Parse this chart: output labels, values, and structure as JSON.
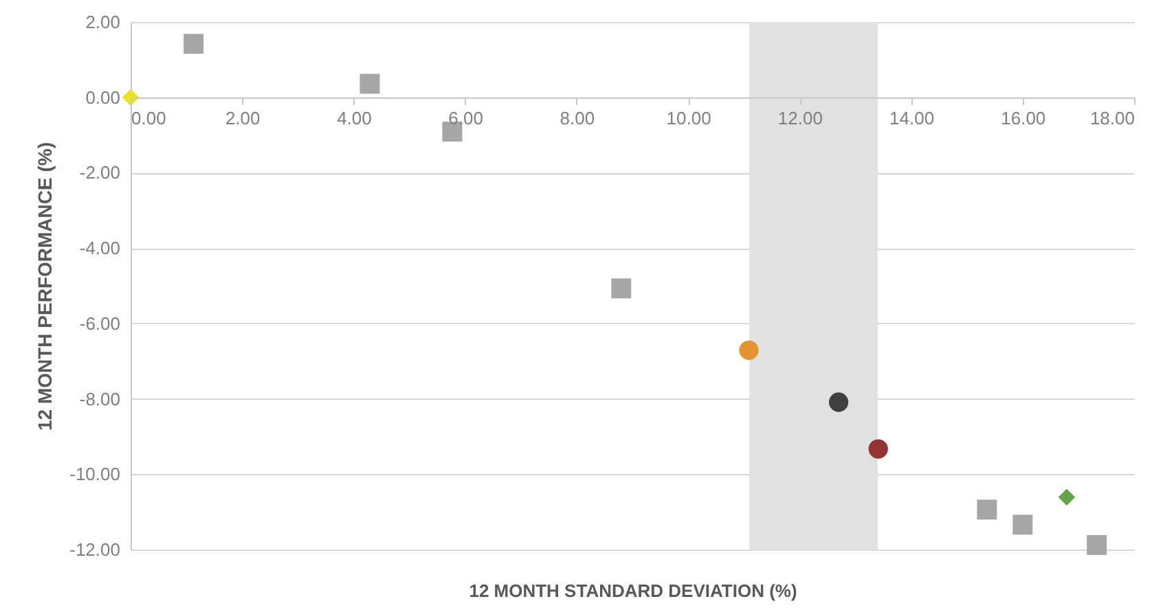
{
  "chart_data": {
    "type": "scatter",
    "xlabel": "12 MONTH STANDARD DEVIATION (%)",
    "ylabel": "12 MONTH PERFORMANCE (%)",
    "xlim": [
      0,
      18
    ],
    "ylim": [
      -12,
      2
    ],
    "xticks": [
      {
        "value": 0,
        "label": "0.00"
      },
      {
        "value": 2,
        "label": "2.00"
      },
      {
        "value": 4,
        "label": "4.00"
      },
      {
        "value": 6,
        "label": "6.00"
      },
      {
        "value": 8,
        "label": "8.00"
      },
      {
        "value": 10,
        "label": "10.00"
      },
      {
        "value": 12,
        "label": "12.00"
      },
      {
        "value": 14,
        "label": "14.00"
      },
      {
        "value": 16,
        "label": "16.00"
      },
      {
        "value": 18,
        "label": "18.00"
      }
    ],
    "yticks": [
      {
        "value": -12,
        "label": "-12.00"
      },
      {
        "value": -10,
        "label": "-10.00"
      },
      {
        "value": -8,
        "label": "-8.00"
      },
      {
        "value": -6,
        "label": "-6.00"
      },
      {
        "value": -4,
        "label": "-4.00"
      },
      {
        "value": -2,
        "label": "-2.00"
      },
      {
        "value": 0,
        "label": "0.00"
      },
      {
        "value": 2,
        "label": "2.00"
      }
    ],
    "grid": "y",
    "bands": [
      {
        "axis": "x",
        "from": 11.1,
        "to": 13.4,
        "color": "#e0e1e0"
      }
    ],
    "series": [
      {
        "color": "#a6a6a6",
        "marker": "square",
        "x": [
          1.13,
          4.29,
          5.77,
          8.8,
          15.36,
          16.0,
          17.33
        ],
        "values": [
          1.42,
          0.36,
          -0.91,
          -5.07,
          -10.94,
          -11.34,
          -11.88
        ]
      },
      {
        "color": "#e3942e",
        "marker": "circle",
        "x": [
          11.09
        ],
        "values": [
          -6.71
        ]
      },
      {
        "color": "#404040",
        "marker": "circle",
        "x": [
          12.7
        ],
        "values": [
          -8.09
        ]
      },
      {
        "color": "#943437",
        "marker": "circle",
        "x": [
          13.41
        ],
        "values": [
          -9.33
        ]
      },
      {
        "color": "#ede31a",
        "marker": "diamond",
        "x": [
          0.0
        ],
        "values": [
          0.0
        ]
      },
      {
        "color": "#62a447",
        "marker": "diamond",
        "x": [
          16.79
        ],
        "values": [
          -10.61
        ]
      }
    ]
  }
}
